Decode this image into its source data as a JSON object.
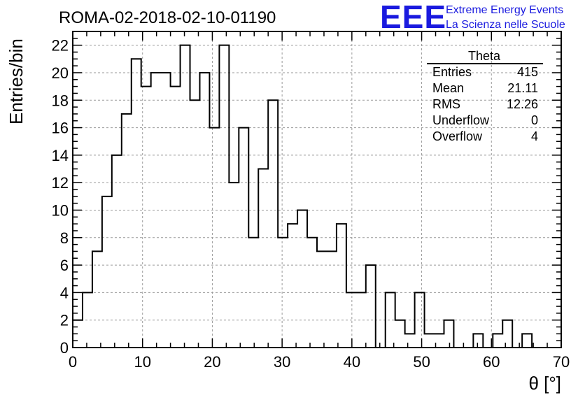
{
  "title": "ROMA-02-2018-02-10-01190",
  "logo": {
    "mark": "EEE",
    "line1": "Extreme Energy Events",
    "line2": "La Scienza nelle Scuole",
    "color": "#1a1adf"
  },
  "stats": {
    "name": "Theta",
    "rows": [
      {
        "label": "Entries",
        "value": "415"
      },
      {
        "label": "Mean",
        "value": "21.11"
      },
      {
        "label": "RMS",
        "value": "12.26"
      },
      {
        "label": "Underflow",
        "value": "0"
      },
      {
        "label": "Overflow",
        "value": "4"
      }
    ]
  },
  "chart_data": {
    "type": "bar",
    "style": "step-histogram",
    "xlabel": "θ [°]",
    "ylabel": "Entries/bin",
    "xlim": [
      0,
      70
    ],
    "ylim": [
      0,
      23
    ],
    "grid": true,
    "x_ticks": [
      0,
      10,
      20,
      30,
      40,
      50,
      60,
      70
    ],
    "y_ticks": [
      0,
      2,
      4,
      6,
      8,
      10,
      12,
      14,
      16,
      18,
      20,
      22
    ],
    "bin_width": 1.4,
    "bin_edges_start": 0,
    "values": [
      2,
      4,
      7,
      11,
      14,
      17,
      21,
      19,
      20,
      20,
      19,
      22,
      18,
      20,
      16,
      22,
      12,
      16,
      8,
      13,
      18,
      8,
      9,
      10,
      8,
      7,
      7,
      9,
      4,
      4,
      6,
      0,
      4,
      2,
      1,
      4,
      1,
      1,
      2,
      0,
      0,
      1,
      0,
      1,
      2,
      0,
      1,
      0,
      0,
      0
    ]
  }
}
